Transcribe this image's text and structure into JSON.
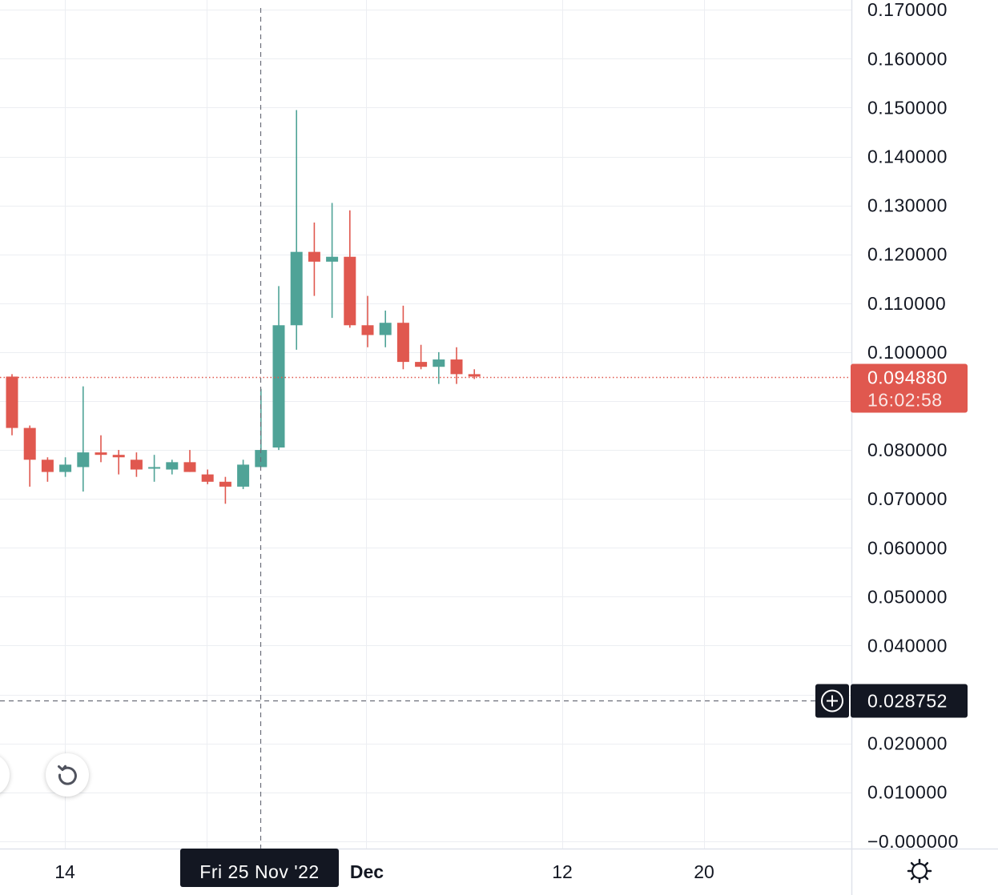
{
  "colors": {
    "up": "#4fa397",
    "down": "#e0584f",
    "grid": "#eceef2",
    "axis_border": "#e0e3eb",
    "text": "#131722",
    "crosshair": "#6a6d78",
    "last_price_tag": "#e0584f",
    "crosshair_tag": "#131722"
  },
  "price_axis": {
    "ticks": [
      {
        "value": 0.17,
        "label": "0.170000"
      },
      {
        "value": 0.16,
        "label": "0.160000"
      },
      {
        "value": 0.15,
        "label": "0.150000"
      },
      {
        "value": 0.14,
        "label": "0.140000"
      },
      {
        "value": 0.13,
        "label": "0.130000"
      },
      {
        "value": 0.12,
        "label": "0.120000"
      },
      {
        "value": 0.11,
        "label": "0.110000"
      },
      {
        "value": 0.1,
        "label": "0.100000"
      },
      {
        "value": 0.08,
        "label": "0.080000"
      },
      {
        "value": 0.07,
        "label": "0.070000"
      },
      {
        "value": 0.06,
        "label": "0.060000"
      },
      {
        "value": 0.05,
        "label": "0.050000"
      },
      {
        "value": 0.04,
        "label": "0.040000"
      },
      {
        "value": 0.02,
        "label": "0.020000"
      },
      {
        "value": 0.01,
        "label": "0.010000"
      },
      {
        "value": 0.0,
        "label": "−0.000000"
      }
    ]
  },
  "last_price": {
    "value": 0.09488,
    "label": "0.094880",
    "countdown": "16:02:58"
  },
  "crosshair": {
    "price_value": 0.028752,
    "price_label": "0.028752",
    "date_label": "Fri 25 Nov '22"
  },
  "time_axis": {
    "labels": [
      {
        "label": "14",
        "bold": false
      },
      {
        "label": "Dec",
        "bold": true
      },
      {
        "label": "12",
        "bold": false
      },
      {
        "label": "20",
        "bold": false
      }
    ]
  },
  "buttons": {
    "reset_icon": "refresh-icon",
    "add_alert_icon": "plus-circle-icon",
    "settings_icon": "gear-icon"
  },
  "chart_data": {
    "type": "candlestick",
    "title": "",
    "ylim": [
      -0.0015,
      0.172
    ],
    "candles": [
      {
        "date": "2022-11-11",
        "open": 0.095,
        "high": 0.0955,
        "low": 0.083,
        "close": 0.0845
      },
      {
        "date": "2022-11-12",
        "open": 0.0845,
        "high": 0.085,
        "low": 0.0725,
        "close": 0.078
      },
      {
        "date": "2022-11-13",
        "open": 0.078,
        "high": 0.0785,
        "low": 0.0735,
        "close": 0.0755
      },
      {
        "date": "2022-11-14",
        "open": 0.0755,
        "high": 0.0785,
        "low": 0.0745,
        "close": 0.077
      },
      {
        "date": "2022-11-15",
        "open": 0.0765,
        "high": 0.093,
        "low": 0.0715,
        "close": 0.0795
      },
      {
        "date": "2022-11-16",
        "open": 0.0795,
        "high": 0.083,
        "low": 0.0775,
        "close": 0.079
      },
      {
        "date": "2022-11-17",
        "open": 0.079,
        "high": 0.08,
        "low": 0.075,
        "close": 0.0785
      },
      {
        "date": "2022-11-18",
        "open": 0.078,
        "high": 0.0795,
        "low": 0.0745,
        "close": 0.076
      },
      {
        "date": "2022-11-19",
        "open": 0.0765,
        "high": 0.079,
        "low": 0.0735,
        "close": 0.0765
      },
      {
        "date": "2022-11-20",
        "open": 0.076,
        "high": 0.078,
        "low": 0.075,
        "close": 0.0775
      },
      {
        "date": "2022-11-21",
        "open": 0.0775,
        "high": 0.08,
        "low": 0.0755,
        "close": 0.0755
      },
      {
        "date": "2022-11-22",
        "open": 0.075,
        "high": 0.076,
        "low": 0.073,
        "close": 0.0735
      },
      {
        "date": "2022-11-23",
        "open": 0.0735,
        "high": 0.0745,
        "low": 0.069,
        "close": 0.0725
      },
      {
        "date": "2022-11-24",
        "open": 0.0725,
        "high": 0.078,
        "low": 0.072,
        "close": 0.077
      },
      {
        "date": "2022-11-25",
        "open": 0.0765,
        "high": 0.0925,
        "low": 0.0765,
        "close": 0.08
      },
      {
        "date": "2022-11-26",
        "open": 0.0805,
        "high": 0.1135,
        "low": 0.08,
        "close": 0.1055
      },
      {
        "date": "2022-11-27",
        "open": 0.1055,
        "high": 0.1495,
        "low": 0.1005,
        "close": 0.1205
      },
      {
        "date": "2022-11-28",
        "open": 0.1205,
        "high": 0.1265,
        "low": 0.1115,
        "close": 0.1185
      },
      {
        "date": "2022-11-29",
        "open": 0.1185,
        "high": 0.1305,
        "low": 0.107,
        "close": 0.1195
      },
      {
        "date": "2022-11-30",
        "open": 0.1195,
        "high": 0.129,
        "low": 0.105,
        "close": 0.1055
      },
      {
        "date": "2022-12-01",
        "open": 0.1055,
        "high": 0.1115,
        "low": 0.101,
        "close": 0.1035
      },
      {
        "date": "2022-12-02",
        "open": 0.1035,
        "high": 0.1085,
        "low": 0.101,
        "close": 0.106
      },
      {
        "date": "2022-12-03",
        "open": 0.106,
        "high": 0.1095,
        "low": 0.0965,
        "close": 0.098
      },
      {
        "date": "2022-12-04",
        "open": 0.098,
        "high": 0.1015,
        "low": 0.0965,
        "close": 0.097
      },
      {
        "date": "2022-12-05",
        "open": 0.097,
        "high": 0.1,
        "low": 0.0935,
        "close": 0.0985
      },
      {
        "date": "2022-12-06",
        "open": 0.0985,
        "high": 0.101,
        "low": 0.0935,
        "close": 0.0955
      },
      {
        "date": "2022-12-07",
        "open": 0.0955,
        "high": 0.0965,
        "low": 0.0945,
        "close": 0.095
      }
    ]
  }
}
